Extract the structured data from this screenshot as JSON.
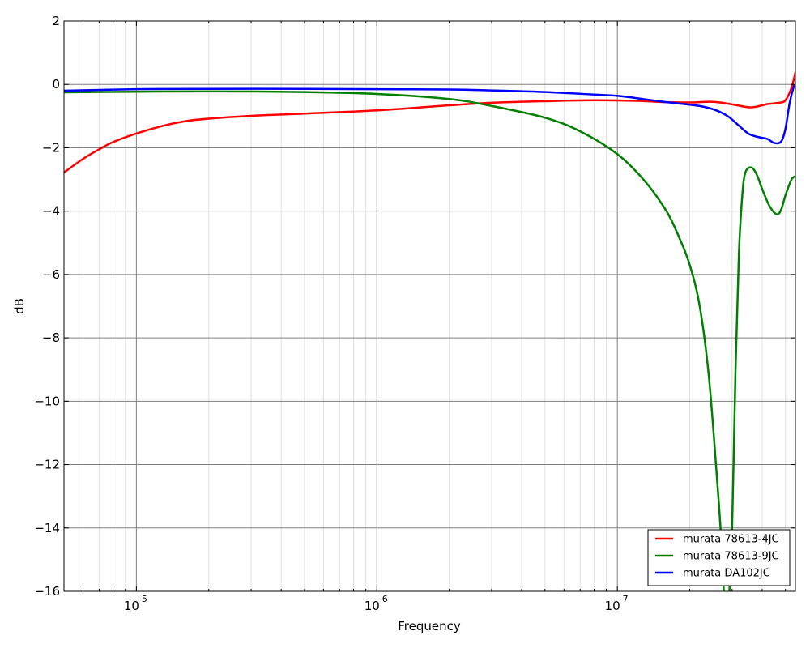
{
  "chart_data": {
    "type": "line",
    "xscale": "log",
    "xlabel": "Frequency",
    "ylabel": "dB",
    "xlim": [
      50000,
      55000000
    ],
    "ylim": [
      -16,
      2
    ],
    "yticks": [
      2,
      0,
      -2,
      -4,
      -6,
      -8,
      -10,
      -12,
      -14,
      -16
    ],
    "ytick_labels": [
      "2",
      "0",
      "−2",
      "−4",
      "−6",
      "−8",
      "−10",
      "−12",
      "−14",
      "−16"
    ],
    "xticks": [
      100000,
      1000000,
      10000000
    ],
    "xtick_labels": [
      {
        "base": "10",
        "exp": "5"
      },
      {
        "base": "10",
        "exp": "6"
      },
      {
        "base": "10",
        "exp": "7"
      }
    ],
    "grid": true,
    "legend_position": "lower-right",
    "series": [
      {
        "name": "murata 78613-4JC",
        "color": "#ff0000",
        "x": [
          50000,
          60000,
          70000,
          80000,
          100000,
          130000,
          160000,
          200000,
          300000,
          500000,
          1000000,
          2000000,
          3000000,
          5000000,
          8000000,
          12000000,
          16000000,
          20000000,
          25000000,
          30000000,
          35000000,
          38000000,
          42000000,
          47000000,
          50000000,
          53000000,
          55000000
        ],
        "y": [
          -2.78,
          -2.35,
          -2.05,
          -1.82,
          -1.55,
          -1.3,
          -1.16,
          -1.08,
          -0.99,
          -0.92,
          -0.82,
          -0.66,
          -0.58,
          -0.53,
          -0.5,
          -0.52,
          -0.56,
          -0.57,
          -0.55,
          -0.63,
          -0.72,
          -0.7,
          -0.62,
          -0.58,
          -0.5,
          -0.1,
          0.38
        ]
      },
      {
        "name": "murata 78613-9JC",
        "color": "#008000",
        "x": [
          50000,
          100000,
          200000,
          500000,
          1000000,
          2000000,
          3000000,
          5000000,
          7000000,
          10000000,
          13000000,
          16000000,
          18000000,
          20000000,
          22000000,
          24000000,
          26000000,
          27000000,
          28000000,
          29000000,
          30000000,
          31000000,
          32000000,
          33000000,
          34000000,
          36000000,
          38000000,
          40000000,
          43000000,
          46000000,
          48000000,
          50000000,
          53000000,
          55000000
        ],
        "y": [
          -0.25,
          -0.23,
          -0.22,
          -0.24,
          -0.3,
          -0.46,
          -0.68,
          -1.05,
          -1.48,
          -2.2,
          -3.05,
          -4.0,
          -4.8,
          -5.7,
          -7.0,
          -9.2,
          -12.5,
          -14.3,
          -16.5,
          -16.3,
          -14.0,
          -9.0,
          -5.4,
          -3.6,
          -2.8,
          -2.62,
          -2.85,
          -3.3,
          -3.85,
          -4.1,
          -3.95,
          -3.5,
          -3.0,
          -2.9
        ]
      },
      {
        "name": "murata DA102JC",
        "color": "#0000ff",
        "x": [
          50000,
          100000,
          200000,
          500000,
          1000000,
          2000000,
          3000000,
          5000000,
          8000000,
          10000000,
          13000000,
          16000000,
          20000000,
          23000000,
          26000000,
          29000000,
          32000000,
          35000000,
          38000000,
          42000000,
          45000000,
          48000000,
          50000000,
          52000000,
          54000000,
          55000000
        ],
        "y": [
          -0.2,
          -0.15,
          -0.14,
          -0.14,
          -0.15,
          -0.16,
          -0.19,
          -0.24,
          -0.32,
          -0.36,
          -0.47,
          -0.56,
          -0.64,
          -0.71,
          -0.83,
          -1.02,
          -1.3,
          -1.55,
          -1.65,
          -1.72,
          -1.85,
          -1.8,
          -1.4,
          -0.6,
          -0.1,
          0.0
        ]
      }
    ]
  }
}
